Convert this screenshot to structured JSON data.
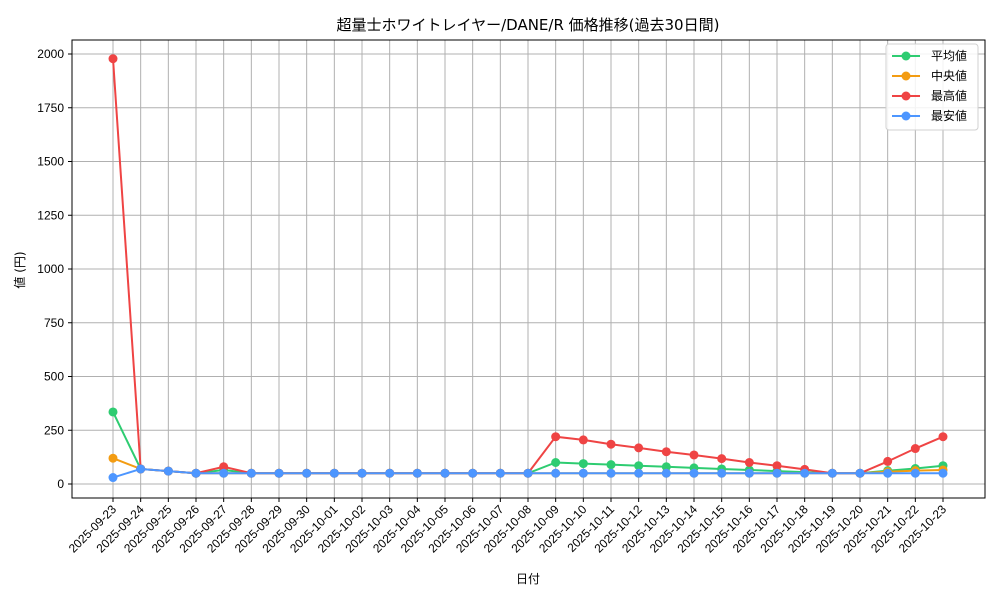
{
  "chart_data": {
    "type": "line",
    "title": "超量士ホワイトレイヤー/DANE/R 価格推移(過去30日間)",
    "xlabel": "日付",
    "ylabel": "値 (円)",
    "ylim": [
      -60,
      2070
    ],
    "yticks": [
      0,
      250,
      500,
      750,
      1000,
      1250,
      1500,
      1750,
      2000
    ],
    "grid": true,
    "legend_position": "upper right",
    "x": [
      "2025-09-23",
      "2025-09-24",
      "2025-09-25",
      "2025-09-26",
      "2025-09-27",
      "2025-09-28",
      "2025-09-29",
      "2025-09-30",
      "2025-10-01",
      "2025-10-02",
      "2025-10-03",
      "2025-10-04",
      "2025-10-05",
      "2025-10-06",
      "2025-10-07",
      "2025-10-08",
      "2025-10-09",
      "2025-10-10",
      "2025-10-11",
      "2025-10-12",
      "2025-10-13",
      "2025-10-14",
      "2025-10-15",
      "2025-10-16",
      "2025-10-17",
      "2025-10-18",
      "2025-10-19",
      "2025-10-20",
      "2025-10-21",
      "2025-10-22",
      "2025-10-23"
    ],
    "series": [
      {
        "name": "平均値",
        "color": "#2ecc71",
        "values": [
          335,
          70,
          60,
          50,
          65,
          50,
          50,
          50,
          50,
          50,
          50,
          50,
          50,
          50,
          50,
          50,
          100,
          95,
          90,
          85,
          80,
          75,
          70,
          65,
          60,
          55,
          50,
          50,
          62,
          72,
          85
        ]
      },
      {
        "name": "中央値",
        "color": "#f39c12",
        "values": [
          120,
          70,
          60,
          50,
          50,
          50,
          50,
          50,
          50,
          50,
          50,
          50,
          50,
          50,
          50,
          50,
          50,
          50,
          50,
          50,
          50,
          50,
          50,
          50,
          50,
          50,
          50,
          50,
          57,
          62,
          65
        ]
      },
      {
        "name": "最高値",
        "color": "#ef4444",
        "values": [
          1978,
          70,
          60,
          50,
          80,
          50,
          50,
          50,
          50,
          50,
          50,
          50,
          50,
          50,
          50,
          50,
          220,
          205,
          185,
          168,
          150,
          135,
          118,
          100,
          85,
          68,
          50,
          50,
          105,
          165,
          220
        ]
      },
      {
        "name": "最安値",
        "color": "#4d96ff",
        "values": [
          30,
          70,
          60,
          50,
          50,
          50,
          50,
          50,
          50,
          50,
          50,
          50,
          50,
          50,
          50,
          50,
          50,
          50,
          50,
          50,
          50,
          50,
          50,
          50,
          50,
          50,
          50,
          50,
          50,
          50,
          50
        ]
      }
    ]
  }
}
